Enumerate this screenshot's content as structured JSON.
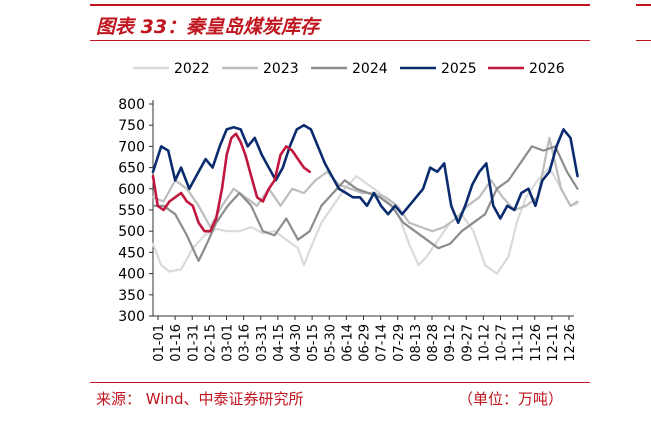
{
  "figure": {
    "title": "图表 33：秦皇岛煤炭库存",
    "source": "来源：  Wind、中泰证券研究所",
    "unit": "（单位：万吨）"
  },
  "colors": {
    "accent": "#c0161f",
    "s2022": "#dadada",
    "s2023": "#bdbdbd",
    "s2024": "#8c8c8c",
    "s2025": "#0a2c6e",
    "s2026": "#c1173f"
  },
  "chart_data": {
    "type": "line",
    "ylim": [
      300,
      800
    ],
    "yticks": [
      300,
      350,
      400,
      450,
      500,
      550,
      600,
      650,
      700,
      750,
      800
    ],
    "xlim": [
      1,
      361
    ],
    "xticks": [
      "01-01",
      "01-16",
      "01-31",
      "02-15",
      "03-01",
      "03-16",
      "03-31",
      "04-15",
      "04-30",
      "05-15",
      "05-30",
      "06-14",
      "06-29",
      "07-14",
      "07-29",
      "08-13",
      "08-28",
      "09-12",
      "09-27",
      "10-12",
      "10-27",
      "11-11",
      "11-26",
      "12-11",
      "12-26"
    ],
    "legend": [
      "2022",
      "2023",
      "2024",
      "2025",
      "2026"
    ],
    "legend_position": "top",
    "grid": false,
    "series": [
      {
        "name": "2022",
        "color": "#dadada",
        "x": [
          1,
          8,
          15,
          25,
          35,
          45,
          55,
          65,
          75,
          85,
          95,
          105,
          115,
          125,
          130,
          135,
          145,
          155,
          165,
          175,
          185,
          195,
          205,
          212,
          220,
          228,
          235,
          245,
          255,
          265,
          275,
          285,
          295,
          305,
          312,
          320,
          330,
          340,
          350,
          358,
          364
        ],
        "y": [
          470,
          420,
          405,
          410,
          460,
          490,
          505,
          500,
          500,
          510,
          495,
          500,
          480,
          460,
          420,
          455,
          520,
          560,
          600,
          630,
          610,
          590,
          560,
          530,
          470,
          420,
          440,
          480,
          520,
          540,
          500,
          420,
          400,
          440,
          520,
          580,
          620,
          650,
          600,
          560,
          565
        ]
      },
      {
        "name": "2023",
        "color": "#bdbdbd",
        "x": [
          1,
          10,
          20,
          30,
          40,
          50,
          60,
          70,
          80,
          90,
          100,
          110,
          120,
          130,
          140,
          150,
          160,
          170,
          180,
          190,
          200,
          210,
          220,
          230,
          240,
          250,
          260,
          270,
          280,
          290,
          300,
          310,
          320,
          330,
          340,
          350,
          358,
          364
        ],
        "y": [
          580,
          570,
          620,
          600,
          560,
          510,
          560,
          600,
          580,
          560,
          600,
          560,
          600,
          590,
          620,
          640,
          610,
          600,
          590,
          590,
          580,
          560,
          520,
          510,
          500,
          510,
          530,
          560,
          580,
          620,
          580,
          550,
          560,
          580,
          720,
          600,
          560,
          570
        ]
      },
      {
        "name": "2024",
        "color": "#8c8c8c",
        "x": [
          1,
          10,
          20,
          30,
          40,
          47,
          55,
          65,
          75,
          85,
          95,
          105,
          115,
          125,
          135,
          145,
          155,
          165,
          175,
          185,
          195,
          205,
          215,
          225,
          235,
          245,
          255,
          265,
          275,
          285,
          295,
          305,
          315,
          325,
          335,
          345,
          355,
          364
        ],
        "y": [
          560,
          560,
          540,
          490,
          430,
          470,
          520,
          560,
          590,
          560,
          500,
          490,
          530,
          480,
          500,
          560,
          590,
          620,
          600,
          590,
          580,
          560,
          520,
          500,
          480,
          460,
          470,
          500,
          520,
          540,
          600,
          620,
          660,
          700,
          690,
          700,
          640,
          600
        ]
      },
      {
        "name": "2025",
        "color": "#0a2c6e",
        "x": [
          1,
          8,
          14,
          20,
          25,
          32,
          40,
          46,
          52,
          58,
          64,
          70,
          76,
          82,
          88,
          94,
          100,
          106,
          112,
          118,
          124,
          130,
          136,
          142,
          148,
          154,
          160,
          166,
          172,
          178,
          184,
          190,
          196,
          202,
          208,
          214,
          220,
          226,
          232,
          238,
          244,
          250,
          256,
          262,
          268,
          274,
          280,
          286,
          292,
          298,
          304,
          310,
          316,
          322,
          328,
          334,
          340,
          346,
          352,
          358,
          364
        ],
        "y": [
          640,
          700,
          690,
          620,
          650,
          600,
          640,
          670,
          650,
          700,
          740,
          745,
          740,
          700,
          720,
          680,
          650,
          620,
          650,
          700,
          740,
          750,
          740,
          700,
          660,
          630,
          600,
          590,
          580,
          580,
          560,
          590,
          560,
          540,
          560,
          540,
          560,
          580,
          600,
          650,
          640,
          660,
          560,
          520,
          560,
          610,
          640,
          660,
          560,
          530,
          560,
          550,
          590,
          600,
          560,
          620,
          640,
          700,
          740,
          720,
          630
        ]
      },
      {
        "name": "2026",
        "color": "#c1173f",
        "x": [
          1,
          5,
          10,
          15,
          20,
          25,
          30,
          35,
          40,
          45,
          50,
          55,
          60,
          64,
          68,
          72,
          76,
          80,
          85,
          90,
          95,
          100,
          105,
          110,
          115,
          120,
          125,
          130,
          135
        ],
        "y": [
          630,
          560,
          550,
          570,
          580,
          590,
          570,
          560,
          520,
          500,
          500,
          530,
          600,
          680,
          720,
          730,
          710,
          680,
          630,
          580,
          570,
          600,
          620,
          680,
          700,
          690,
          670,
          650,
          640
        ]
      }
    ]
  }
}
